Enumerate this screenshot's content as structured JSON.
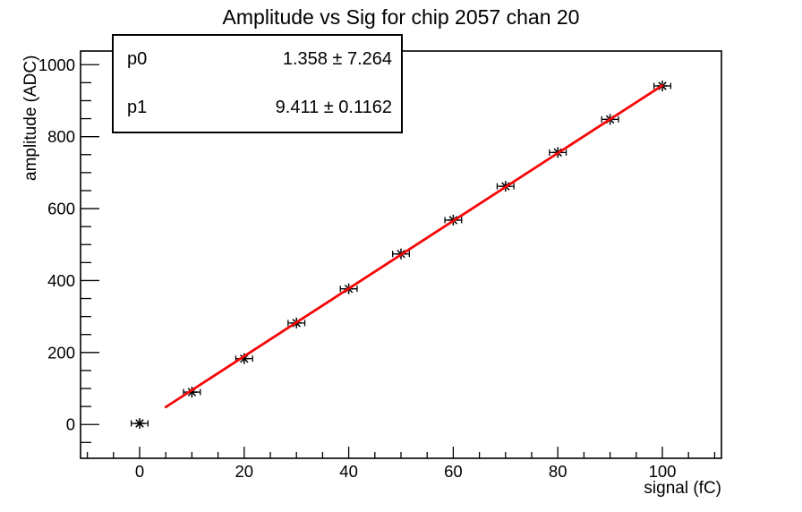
{
  "title": "Amplitude vs Sig for chip 2057 chan 20",
  "stats_box": {
    "rows": [
      {
        "label": "p0",
        "value": "1.358 ± 7.264"
      },
      {
        "label": "p1",
        "value": "9.411 ± 0.1162"
      }
    ]
  },
  "chart_data": {
    "type": "scatter",
    "title": "Amplitude vs Sig for chip 2057 chan 20",
    "xlabel": "signal (fC)",
    "ylabel": "amplitude (ADC)",
    "x": [
      0,
      10,
      20,
      30,
      40,
      50,
      60,
      70,
      80,
      90,
      100
    ],
    "y": [
      3,
      90,
      183,
      282,
      377,
      474,
      568,
      662,
      756,
      848,
      941
    ],
    "xerr": 1.6,
    "fit": {
      "label_p0": "p0",
      "p0": 1.358,
      "p0_err": 7.264,
      "label_p1": "p1",
      "p1": 9.411,
      "p1_err": 0.1162,
      "x_range": [
        5,
        100
      ],
      "color": "#f60606",
      "line_width": 2.8
    },
    "marker": "asterisk-8-spoke",
    "marker_color": "#000000",
    "xlim": [
      -11.3,
      111.3
    ],
    "ylim": [
      -94,
      1038
    ],
    "x_major_ticks": [
      0,
      20,
      40,
      60,
      80,
      100
    ],
    "x_minor_step": 5,
    "y_major_ticks": [
      0,
      200,
      400,
      600,
      800,
      1000
    ],
    "y_minor_step": 50,
    "grid": "off",
    "legend": "none",
    "background": "#ffffff",
    "axis_color": "#000000"
  }
}
